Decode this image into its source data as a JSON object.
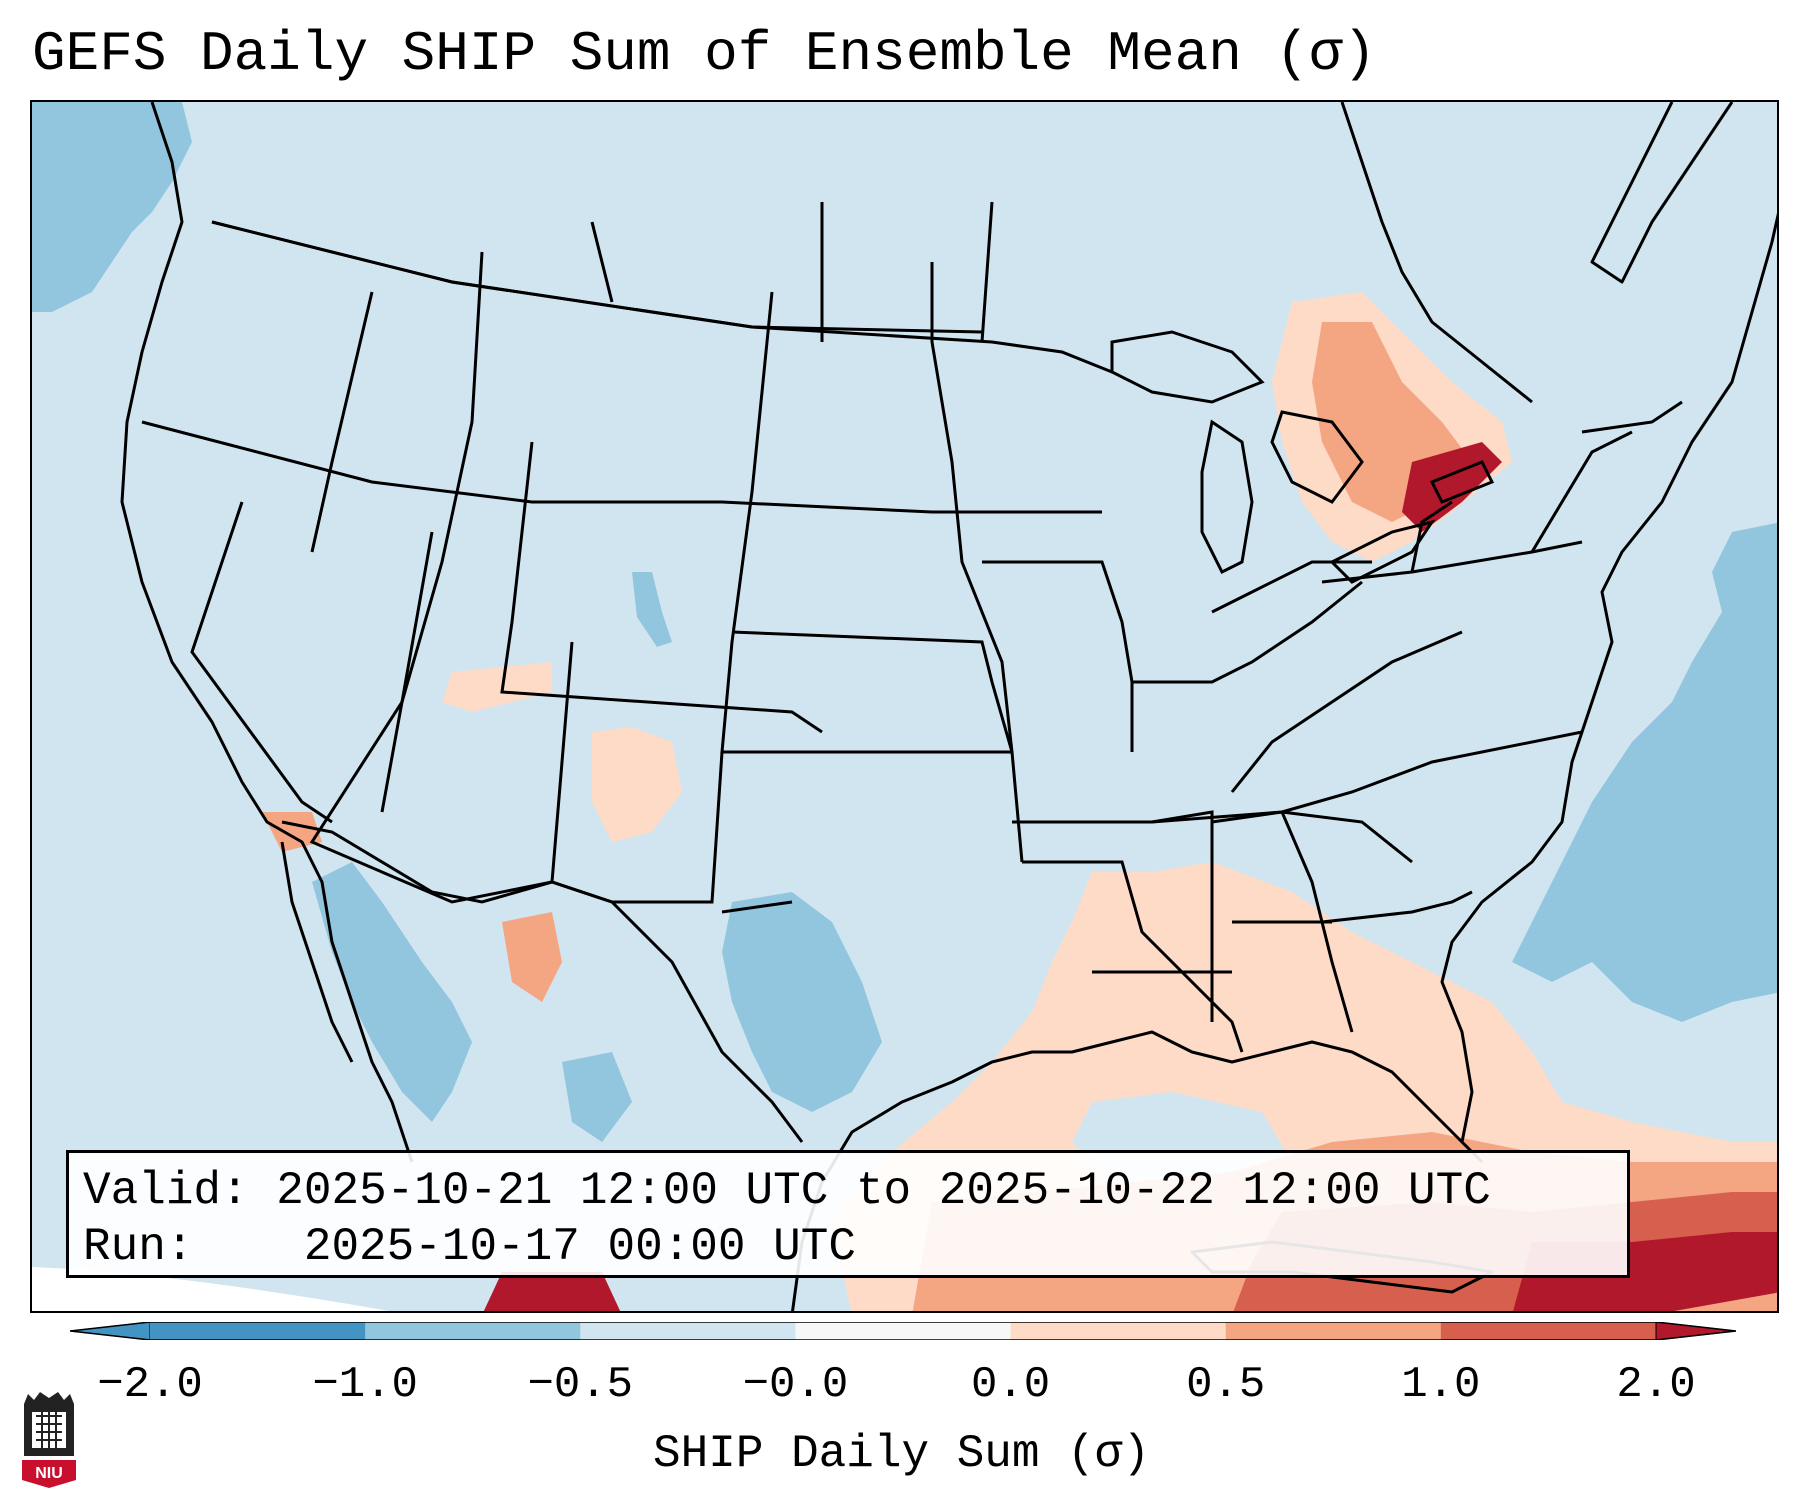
{
  "title": "GEFS Daily SHIP Sum of Ensemble Mean (σ)",
  "info": {
    "valid_label": "Valid:",
    "valid_value": "2025-10-21 12:00 UTC to 2025-10-22 12:00 UTC",
    "run_label": "Run:",
    "run_value": "2025-10-17 00:00 UTC"
  },
  "colorbar": {
    "label": "SHIP Daily Sum (σ)",
    "ticks": [
      "−2.0",
      "−1.0",
      "−0.5",
      "−0.0",
      "0.0",
      "0.5",
      "1.0",
      "2.0"
    ],
    "colors": [
      "#4393c3",
      "#92c5de",
      "#d1e5f0",
      "#f7f7f7",
      "#fddbc7",
      "#f4a582",
      "#d6604d",
      "#b2182b"
    ]
  },
  "logo": {
    "text": "NIU"
  },
  "colors": {
    "ocean_default": "#d1e5f0",
    "land_default": "#d1e5f0",
    "coastline": "#000000"
  }
}
